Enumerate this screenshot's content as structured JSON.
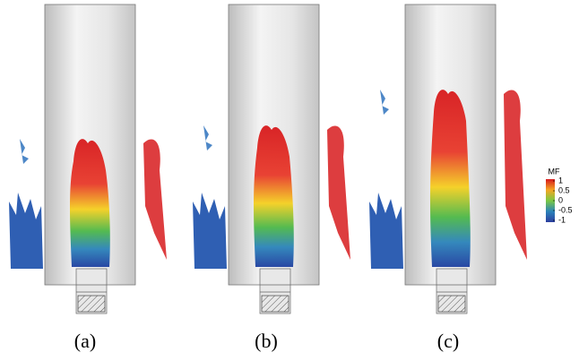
{
  "panels": [
    {
      "label": "(a)"
    },
    {
      "label": "(b)"
    },
    {
      "label": "(c)"
    }
  ],
  "colorbar": {
    "title": "MF",
    "range": [
      -1,
      1
    ],
    "ticks": [
      1,
      0.5,
      0,
      -0.5,
      -1
    ]
  }
}
